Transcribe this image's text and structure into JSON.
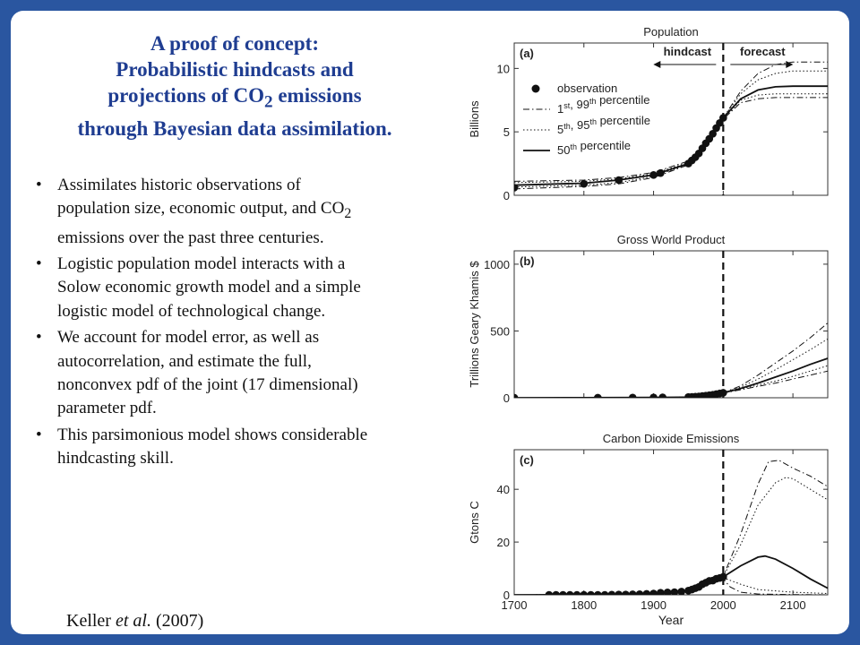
{
  "slide": {
    "title_lines": [
      {
        "text": "A proof of concept:"
      },
      {
        "text": "Probabilistic hindcasts and"
      },
      {
        "pre": "projections of CO",
        "sub": "2",
        "post": " emissions"
      },
      {
        "text": "through Bayesian data assimilation."
      }
    ],
    "bullets": [
      {
        "pre": "Assimilates historic observations of population size, economic output, and CO",
        "sub": "2",
        "post": " emissions over the past three centuries."
      },
      {
        "pre": "Logistic population model interacts with a Solow economic growth model and a simple logistic model of technological change."
      },
      {
        "pre": "We account for model error, as well as autocorrelation, and estimate the full, nonconvex pdf of the joint (17 dimensional) parameter pdf."
      },
      {
        "pre": "This parsimonious model shows considerable hindcasting skill."
      }
    ],
    "citation": {
      "author": "Keller ",
      "etal": "et al.",
      "year": " (2007)"
    }
  },
  "chart_data": [
    {
      "type": "line",
      "panel": "(a)",
      "title": "Population",
      "ylabel": "Billions",
      "xlabel": "",
      "xlim": [
        1700,
        2150
      ],
      "ylim": [
        0,
        12
      ],
      "yticks": [
        0,
        5,
        10
      ],
      "xticks": [
        1700,
        1800,
        1900,
        2000,
        2100
      ],
      "vline": 2000,
      "hindcast_label": "hindcast",
      "forecast_label": "forecast",
      "legend": [
        {
          "label": "observation",
          "sup": "",
          "tail": "",
          "style": "dot"
        },
        {
          "label": "1",
          "sup": "st",
          "tail": ", 99",
          "sup2": "th",
          "tail2": " percentile",
          "style": "dashdot"
        },
        {
          "label": "5",
          "sup": "th",
          "tail": ", 95",
          "sup2": "th",
          "tail2": " percentile",
          "style": "dotted"
        },
        {
          "label": "50",
          "sup": "th",
          "tail": " percentile",
          "style": "solid"
        }
      ],
      "observations": {
        "x": [
          1700,
          1800,
          1850,
          1900,
          1910,
          1950,
          1955,
          1960,
          1965,
          1970,
          1975,
          1980,
          1985,
          1990,
          1995,
          2000
        ],
        "y": [
          0.6,
          0.9,
          1.2,
          1.6,
          1.75,
          2.5,
          2.75,
          3.0,
          3.3,
          3.7,
          4.1,
          4.45,
          4.85,
          5.3,
          5.7,
          6.1
        ]
      },
      "series": [
        {
          "style": "solid",
          "x": [
            1700,
            1800,
            1850,
            1900,
            1950,
            1975,
            2000,
            2025,
            2050,
            2075,
            2100,
            2150
          ],
          "y": [
            0.8,
            0.95,
            1.2,
            1.6,
            2.5,
            4.0,
            6.1,
            7.6,
            8.3,
            8.55,
            8.6,
            8.6
          ]
        },
        {
          "style": "dashdot",
          "x": [
            1700,
            1800,
            1850,
            1900,
            1950,
            1975,
            2000,
            2025,
            2050,
            2075,
            2100,
            2150
          ],
          "y": [
            0.5,
            0.7,
            0.9,
            1.4,
            2.4,
            4.0,
            6.1,
            8.2,
            9.6,
            10.3,
            10.5,
            10.5
          ]
        },
        {
          "style": "dashdot",
          "x": [
            1700,
            1800,
            1850,
            1900,
            1950,
            1975,
            2000,
            2025,
            2050,
            2075,
            2100,
            2150
          ],
          "y": [
            1.1,
            1.2,
            1.4,
            1.8,
            2.7,
            4.1,
            6.0,
            7.3,
            7.6,
            7.7,
            7.7,
            7.7
          ]
        },
        {
          "style": "dotted",
          "x": [
            1700,
            1800,
            1850,
            1900,
            1950,
            1975,
            2000,
            2025,
            2050,
            2075,
            2100,
            2150
          ],
          "y": [
            0.65,
            0.8,
            1.0,
            1.5,
            2.45,
            4.0,
            6.1,
            8.0,
            9.1,
            9.6,
            9.8,
            9.8
          ]
        },
        {
          "style": "dotted",
          "x": [
            1700,
            1800,
            1850,
            1900,
            1950,
            1975,
            2000,
            2025,
            2050,
            2075,
            2100,
            2150
          ],
          "y": [
            1.0,
            1.1,
            1.3,
            1.7,
            2.6,
            4.0,
            6.0,
            7.5,
            7.9,
            8.0,
            8.0,
            8.0
          ]
        }
      ]
    },
    {
      "type": "line",
      "panel": "(b)",
      "title": "Gross World Product",
      "ylabel": "Trillions Geary Khamis $",
      "xlabel": "",
      "xlim": [
        1700,
        2150
      ],
      "ylim": [
        0,
        1100
      ],
      "yticks": [
        0,
        500,
        1000
      ],
      "xticks": [
        1700,
        1800,
        1900,
        2000,
        2100
      ],
      "vline": 2000,
      "observations": {
        "x": [
          1700,
          1820,
          1870,
          1900,
          1913,
          1950,
          1955,
          1960,
          1965,
          1970,
          1975,
          1980,
          1985,
          1990,
          1995,
          2000
        ],
        "y": [
          0.4,
          0.7,
          1.1,
          2.0,
          2.7,
          5.3,
          6.5,
          8.0,
          10.0,
          13.0,
          16.0,
          19.0,
          22.0,
          27.0,
          32.0,
          37.0
        ]
      },
      "series": [
        {
          "style": "solid",
          "x": [
            1700,
            1800,
            1900,
            1950,
            1975,
            2000,
            2025,
            2050,
            2075,
            2100,
            2125,
            2150
          ],
          "y": [
            0,
            0.5,
            2,
            5,
            15,
            37,
            70,
            110,
            155,
            200,
            250,
            295
          ]
        },
        {
          "style": "dashdot",
          "x": [
            1700,
            1800,
            1900,
            1950,
            1975,
            2000,
            2025,
            2050,
            2075,
            2100,
            2125,
            2150
          ],
          "y": [
            0,
            0.5,
            2,
            5,
            15,
            37,
            90,
            170,
            260,
            350,
            450,
            560
          ]
        },
        {
          "style": "dashdot",
          "x": [
            1700,
            1800,
            1900,
            1950,
            1975,
            2000,
            2025,
            2050,
            2075,
            2100,
            2125,
            2150
          ],
          "y": [
            0,
            0.5,
            2,
            5,
            15,
            35,
            60,
            85,
            110,
            140,
            170,
            200
          ]
        },
        {
          "style": "dotted",
          "x": [
            1700,
            1800,
            1900,
            1950,
            1975,
            2000,
            2025,
            2050,
            2075,
            2100,
            2125,
            2150
          ],
          "y": [
            0,
            0.5,
            2,
            5,
            15,
            37,
            80,
            140,
            210,
            285,
            360,
            440
          ]
        },
        {
          "style": "dotted",
          "x": [
            1700,
            1800,
            1900,
            1950,
            1975,
            2000,
            2025,
            2050,
            2075,
            2100,
            2125,
            2150
          ],
          "y": [
            0,
            0.5,
            2,
            5,
            15,
            36,
            65,
            95,
            125,
            160,
            200,
            240
          ]
        }
      ]
    },
    {
      "type": "line",
      "panel": "(c)",
      "title": "Carbon Dioxide Emissions",
      "ylabel": "Gtons C",
      "xlabel": "Year",
      "xlim": [
        1700,
        2150
      ],
      "ylim": [
        0,
        55
      ],
      "yticks": [
        0,
        20,
        40
      ],
      "xticks": [
        1700,
        1800,
        1900,
        2000,
        2100
      ],
      "vline": 2000,
      "observations": {
        "x": [
          1750,
          1760,
          1770,
          1780,
          1790,
          1800,
          1810,
          1820,
          1830,
          1840,
          1850,
          1860,
          1870,
          1880,
          1890,
          1900,
          1910,
          1920,
          1930,
          1940,
          1950,
          1955,
          1960,
          1965,
          1970,
          1975,
          1980,
          1985,
          1990,
          1995,
          2000
        ],
        "y": [
          0,
          0,
          0,
          0,
          0,
          0,
          0,
          0,
          0,
          0.05,
          0.1,
          0.1,
          0.2,
          0.25,
          0.35,
          0.5,
          0.8,
          0.9,
          1.0,
          1.2,
          1.6,
          2.0,
          2.5,
          3.0,
          4.0,
          4.6,
          5.3,
          5.4,
          6.1,
          6.4,
          6.8
        ]
      },
      "series": [
        {
          "style": "solid",
          "x": [
            1700,
            1850,
            1900,
            1950,
            1975,
            2000,
            2025,
            2050,
            2060,
            2075,
            2100,
            2125,
            2150
          ],
          "y": [
            0,
            0.1,
            0.5,
            1.6,
            4.5,
            6.8,
            11,
            14.3,
            14.7,
            13.5,
            10,
            6,
            2.5
          ]
        },
        {
          "style": "dashdot",
          "x": [
            1700,
            1850,
            1900,
            1950,
            1975,
            2000,
            2025,
            2050,
            2065,
            2080,
            2100,
            2125,
            2150
          ],
          "y": [
            0,
            0.1,
            0.5,
            1.6,
            4.5,
            7.0,
            23,
            42,
            50.5,
            51,
            48,
            45,
            41
          ]
        },
        {
          "style": "dashdot",
          "x": [
            1700,
            1850,
            1900,
            1950,
            1975,
            2000,
            2010,
            2025,
            2050,
            2100,
            2150
          ],
          "y": [
            0,
            0.1,
            0.5,
            1.6,
            4.5,
            6.0,
            3,
            1,
            0.3,
            0.1,
            0
          ]
        },
        {
          "style": "dotted",
          "x": [
            1700,
            1850,
            1900,
            1950,
            1975,
            2000,
            2025,
            2050,
            2075,
            2090,
            2100,
            2125,
            2150
          ],
          "y": [
            0,
            0.1,
            0.5,
            1.6,
            4.5,
            7.0,
            19,
            34,
            42.5,
            44.5,
            44,
            40,
            36
          ]
        },
        {
          "style": "dotted",
          "x": [
            1700,
            1850,
            1900,
            1950,
            1975,
            2000,
            2025,
            2050,
            2100,
            2150
          ],
          "y": [
            0,
            0.1,
            0.5,
            1.6,
            4.5,
            6.5,
            4,
            2,
            1,
            0.5
          ]
        }
      ]
    }
  ]
}
